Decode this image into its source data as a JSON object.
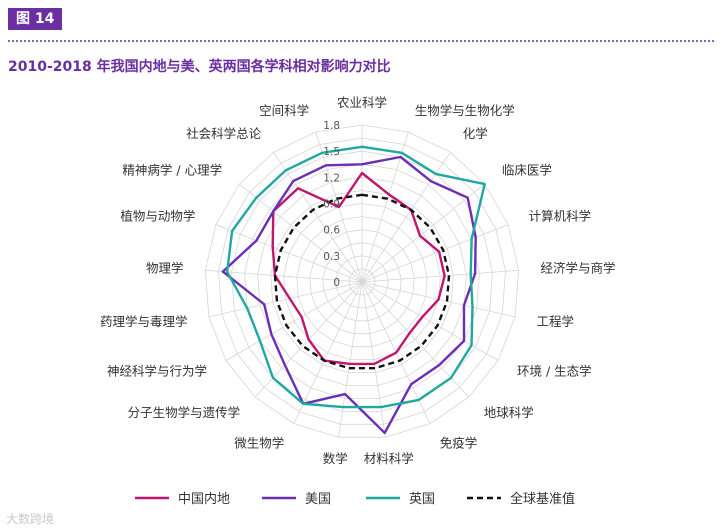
{
  "figure_label": "图 14",
  "chart_data": {
    "type": "radar",
    "title": "2010-2018 年我国内地与美、英两国各学科相对影响力对比",
    "categories": [
      "农业科学",
      "生物学与生物化学",
      "化学",
      "临床医学",
      "计算机科学",
      "经济学与商学",
      "工程学",
      "环境 / 生态学",
      "地球科学",
      "免疫学",
      "材料科学",
      "数学",
      "微生物学",
      "分子生物学与遗传学",
      "神经科学与行为学",
      "药理学与毒理学",
      "物理学",
      "植物与动物学",
      "精神病学 / 心理学",
      "社会科学总论",
      "空间科学"
    ],
    "radial_ticks": [
      "0",
      "0.3",
      "0.6",
      "0.9",
      "1.2",
      "1.5",
      "1.8"
    ],
    "rmax": 1.8,
    "series": [
      {
        "name": "中国内地",
        "color": "#c0166e",
        "dashed": false,
        "values": [
          1.25,
          1.05,
          1.0,
          0.85,
          0.95,
          0.95,
          0.9,
          0.8,
          0.8,
          0.9,
          0.95,
          0.95,
          1.0,
          0.9,
          0.8,
          0.85,
          1.0,
          1.1,
          1.3,
          1.3,
          0.9
        ]
      },
      {
        "name": "美国",
        "color": "#6a2fb5",
        "dashed": false,
        "values": [
          1.35,
          1.5,
          1.4,
          1.55,
          1.4,
          1.3,
          1.2,
          1.35,
          1.3,
          1.3,
          1.75,
          1.3,
          1.55,
          1.3,
          1.2,
          1.15,
          1.6,
          1.3,
          1.3,
          1.4,
          1.4
        ]
      },
      {
        "name": "英国",
        "color": "#1fa8a0",
        "dashed": false,
        "values": [
          1.55,
          1.55,
          1.5,
          1.8,
          1.35,
          1.25,
          1.3,
          1.45,
          1.5,
          1.5,
          1.45,
          1.45,
          1.55,
          1.5,
          1.35,
          1.35,
          1.55,
          1.6,
          1.55,
          1.55,
          1.55
        ]
      },
      {
        "name": "全球基准值",
        "color": "#111111",
        "dashed": true,
        "values": [
          1,
          1,
          1,
          1,
          1,
          1,
          1,
          1,
          1,
          1,
          1,
          1,
          1,
          1,
          1,
          1,
          1,
          1,
          1,
          1,
          1
        ]
      }
    ]
  },
  "watermark": "大数跨境"
}
